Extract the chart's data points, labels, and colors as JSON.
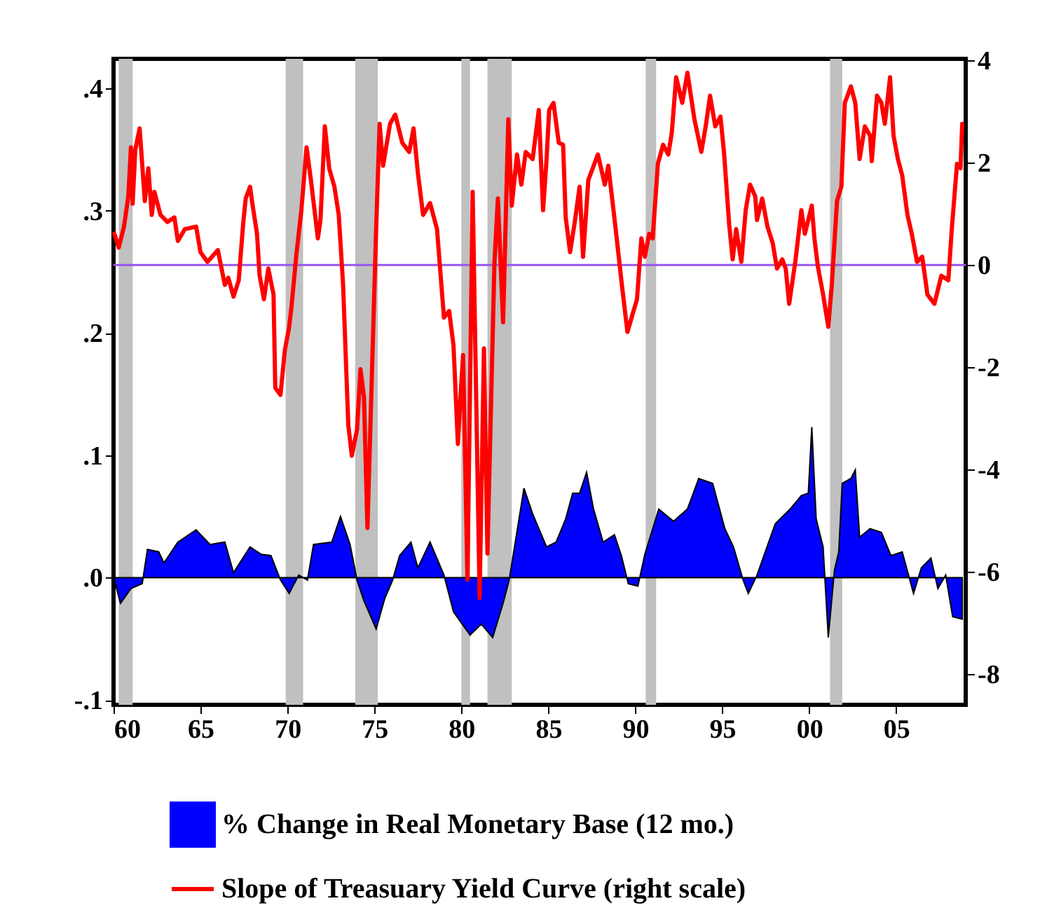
{
  "chart_data": {
    "type": "area",
    "xlim": [
      1960,
      2009
    ],
    "xticks": [
      {
        "value": 1960,
        "label": "60"
      },
      {
        "value": 1965,
        "label": "65"
      },
      {
        "value": 1970,
        "label": "70"
      },
      {
        "value": 1975,
        "label": "75"
      },
      {
        "value": 1980,
        "label": "80"
      },
      {
        "value": 1985,
        "label": "85"
      },
      {
        "value": 1990,
        "label": "90"
      },
      {
        "value": 1995,
        "label": "95"
      },
      {
        "value": 2000,
        "label": "00"
      },
      {
        "value": 2005,
        "label": "05"
      }
    ],
    "ylim": [
      -0.104,
      0.424
    ],
    "yticks": [
      {
        "value": -0.1,
        "label": "-.1"
      },
      {
        "value": 0,
        "label": ".0"
      },
      {
        "value": 0.1,
        "label": ".1"
      },
      {
        "value": 0.2,
        "label": ".2"
      },
      {
        "value": 0.3,
        "label": ".3"
      },
      {
        "value": 0.4,
        "label": ".4"
      }
    ],
    "y2lim": [
      -8.6,
      4.03
    ],
    "y2ticks": [
      -8,
      -6,
      -4,
      -2,
      0,
      2,
      4
    ],
    "grid": false,
    "legend": "bottom",
    "series": [
      {
        "name": "% Change in Real Monetary Base (12 mo.)",
        "color": "#0000ff",
        "x": [
          1960.05,
          1960.4,
          1961.0,
          1961.65,
          1961.95,
          1962.6,
          1962.9,
          1963.7,
          1964.75,
          1965.55,
          1966.4,
          1966.9,
          1967.85,
          1968.5,
          1969.05,
          1969.6,
          1970.1,
          1970.65,
          1971.15,
          1971.5,
          1972.55,
          1973.05,
          1973.6,
          1974.0,
          1974.4,
          1975.1,
          1975.6,
          1976.05,
          1976.45,
          1977.1,
          1977.5,
          1978.2,
          1979.0,
          1979.55,
          1980.5,
          1981.15,
          1981.8,
          1982.4,
          1982.75,
          1983.6,
          1984.1,
          1984.9,
          1985.45,
          1986.0,
          1986.4,
          1986.8,
          1987.2,
          1987.6,
          1988.15,
          1988.8,
          1989.2,
          1989.6,
          1990.15,
          1990.55,
          1991.35,
          1992.2,
          1993.0,
          1993.65,
          1994.45,
          1995.15,
          1995.65,
          1996.2,
          1996.5,
          1997.0,
          1998.05,
          1998.9,
          1999.55,
          1999.95,
          2000.15,
          2000.4,
          2000.8,
          2001.1,
          2001.45,
          2001.7,
          2001.9,
          2002.4,
          2002.65,
          2002.9,
          2003.5,
          2004.15,
          2004.7,
          2005.35,
          2006.0,
          2006.45,
          2007.0,
          2007.4,
          2007.85,
          2008.25,
          2008.8
        ],
        "values": [
          -0.002,
          -0.021,
          -0.009,
          -0.005,
          0.023,
          0.021,
          0.012,
          0.029,
          0.039,
          0.027,
          0.029,
          0.004,
          0.025,
          0.019,
          0.018,
          -0.002,
          -0.013,
          0.002,
          -0.002,
          0.027,
          0.029,
          0.05,
          0.027,
          -0.002,
          -0.019,
          -0.042,
          -0.017,
          -0.002,
          0.018,
          0.029,
          0.008,
          0.029,
          0.002,
          -0.028,
          -0.047,
          -0.038,
          -0.049,
          -0.021,
          -0.002,
          0.073,
          0.052,
          0.025,
          0.029,
          0.048,
          0.069,
          0.069,
          0.086,
          0.056,
          0.029,
          0.035,
          0.018,
          -0.005,
          -0.007,
          0.019,
          0.056,
          0.046,
          0.056,
          0.081,
          0.077,
          0.04,
          0.025,
          -0.002,
          -0.013,
          0.002,
          0.044,
          0.056,
          0.067,
          0.069,
          0.123,
          0.048,
          0.025,
          -0.049,
          0.006,
          0.021,
          0.077,
          0.081,
          0.088,
          0.033,
          0.04,
          0.037,
          0.018,
          0.021,
          -0.013,
          0.008,
          0.016,
          -0.009,
          0.002,
          -0.032,
          -0.034
        ]
      },
      {
        "name": "Slope of Treasuary Yield Curve (right scale)",
        "type": "line",
        "axis": "y2",
        "color": "#ff0000",
        "x": [
          1960.05,
          1960.3,
          1960.6,
          1960.85,
          1961.0,
          1961.1,
          1961.25,
          1961.5,
          1961.8,
          1962.0,
          1962.2,
          1962.35,
          1962.7,
          1963.1,
          1963.5,
          1963.7,
          1964.1,
          1964.75,
          1965.0,
          1965.4,
          1966.0,
          1966.4,
          1966.6,
          1966.9,
          1967.2,
          1967.45,
          1967.6,
          1967.85,
          1968.0,
          1968.25,
          1968.4,
          1968.65,
          1968.9,
          1969.2,
          1969.3,
          1969.6,
          1969.85,
          1970.1,
          1970.25,
          1970.5,
          1970.8,
          1971.1,
          1971.35,
          1971.75,
          1971.9,
          1972.15,
          1972.4,
          1972.7,
          1972.95,
          1973.2,
          1973.5,
          1973.7,
          1974.0,
          1974.2,
          1974.4,
          1974.6,
          1974.85,
          1975.1,
          1975.3,
          1975.5,
          1975.9,
          1976.2,
          1976.6,
          1977.0,
          1977.25,
          1977.5,
          1977.8,
          1978.2,
          1978.6,
          1979.0,
          1979.3,
          1979.55,
          1979.8,
          1979.95,
          1980.1,
          1980.35,
          1980.65,
          1981.05,
          1981.3,
          1981.5,
          1981.9,
          1982.1,
          1982.4,
          1982.7,
          1982.9,
          1983.2,
          1983.45,
          1983.7,
          1984.1,
          1984.45,
          1984.7,
          1984.9,
          1985.05,
          1985.3,
          1985.6,
          1985.85,
          1986.0,
          1986.25,
          1986.5,
          1986.8,
          1987.0,
          1987.3,
          1987.85,
          1988.25,
          1988.45,
          1988.7,
          1988.95,
          1989.2,
          1989.55,
          1989.9,
          1990.1,
          1990.35,
          1990.55,
          1990.8,
          1991.0,
          1991.3,
          1991.6,
          1991.9,
          1992.1,
          1992.35,
          1992.7,
          1993.0,
          1993.4,
          1993.8,
          1994.05,
          1994.3,
          1994.6,
          1994.9,
          1995.1,
          1995.4,
          1995.6,
          1995.8,
          1996.1,
          1996.35,
          1996.6,
          1996.9,
          1997.0,
          1997.3,
          1997.6,
          1997.9,
          1998.15,
          1998.45,
          1998.65,
          1998.85,
          1999.2,
          1999.55,
          1999.75,
          1999.95,
          2000.15,
          2000.3,
          2000.5,
          2000.8,
          2001.1,
          2001.3,
          2001.6,
          2001.85,
          2002.05,
          2002.4,
          2002.65,
          2002.9,
          2003.2,
          2003.5,
          2003.6,
          2003.9,
          2004.15,
          2004.35,
          2004.65,
          2004.85,
          2005.1,
          2005.35,
          2005.65,
          2005.9,
          2006.2,
          2006.5,
          2006.8,
          2007.2,
          2007.6,
          2008.0,
          2008.2,
          2008.5,
          2008.7,
          2008.8
        ],
        "values": [
          0.61,
          0.34,
          0.75,
          1.34,
          2.3,
          1.2,
          2.25,
          2.67,
          1.25,
          1.89,
          0.98,
          1.43,
          0.98,
          0.84,
          0.93,
          0.47,
          0.7,
          0.75,
          0.25,
          0.06,
          0.29,
          -0.39,
          -0.25,
          -0.62,
          -0.3,
          0.79,
          1.3,
          1.53,
          1.16,
          0.61,
          -0.21,
          -0.67,
          -0.07,
          -0.58,
          -2.4,
          -2.54,
          -1.67,
          -1.21,
          -0.76,
          0.16,
          1.07,
          2.3,
          1.66,
          0.52,
          0.88,
          2.71,
          1.89,
          1.53,
          0.98,
          -0.39,
          -3.13,
          -3.73,
          -3.22,
          -2.04,
          -2.58,
          -5.14,
          -2.22,
          0.7,
          2.76,
          1.94,
          2.76,
          2.94,
          2.39,
          2.21,
          2.67,
          1.8,
          0.98,
          1.21,
          0.7,
          -1.03,
          -0.9,
          -1.58,
          -3.5,
          -2.58,
          -1.76,
          -6.15,
          1.43,
          -6.51,
          -1.63,
          -5.64,
          0.02,
          1.3,
          -1.12,
          2.85,
          1.16,
          2.16,
          1.57,
          2.21,
          2.07,
          3.03,
          1.07,
          2.07,
          3.03,
          3.17,
          2.39,
          2.35,
          0.93,
          0.25,
          0.79,
          1.53,
          0.16,
          1.66,
          2.16,
          1.57,
          1.94,
          1.21,
          0.47,
          -0.3,
          -1.31,
          -0.9,
          -0.67,
          0.52,
          0.16,
          0.61,
          0.52,
          1.98,
          2.35,
          2.16,
          2.58,
          3.67,
          3.17,
          3.76,
          2.85,
          2.21,
          2.71,
          3.31,
          2.71,
          2.9,
          2.21,
          0.79,
          0.11,
          0.7,
          0.06,
          1.07,
          1.57,
          1.34,
          0.88,
          1.3,
          0.75,
          0.43,
          -0.07,
          0.11,
          -0.07,
          -0.76,
          0.06,
          1.07,
          0.61,
          0.88,
          1.16,
          0.52,
          -0.03,
          -0.58,
          -1.21,
          -0.39,
          1.25,
          1.53,
          3.17,
          3.49,
          3.17,
          2.07,
          2.71,
          2.53,
          2.03,
          3.31,
          3.17,
          2.76,
          3.67,
          2.53,
          2.07,
          1.75,
          0.98,
          0.61,
          0.06,
          0.16,
          -0.58,
          -0.76,
          -0.21,
          -0.3,
          0.7,
          1.98,
          1.89,
          2.76
        ]
      }
    ],
    "ref_lines": [
      {
        "axis": "y2",
        "value": 0,
        "color": "#9955ee"
      }
    ],
    "bands": [
      {
        "axis": "x",
        "from": 1960.3,
        "to": 1961.1,
        "color": "#c0c0c0"
      },
      {
        "axis": "x",
        "from": 1969.9,
        "to": 1970.9,
        "color": "#c0c0c0"
      },
      {
        "axis": "x",
        "from": 1973.9,
        "to": 1975.2,
        "color": "#c0c0c0"
      },
      {
        "axis": "x",
        "from": 1980.0,
        "to": 1980.5,
        "color": "#c0c0c0"
      },
      {
        "axis": "x",
        "from": 1981.5,
        "to": 1982.9,
        "color": "#c0c0c0"
      },
      {
        "axis": "x",
        "from": 1990.6,
        "to": 1991.2,
        "color": "#c0c0c0"
      },
      {
        "axis": "x",
        "from": 2001.2,
        "to": 2001.9,
        "color": "#c0c0c0"
      }
    ]
  }
}
